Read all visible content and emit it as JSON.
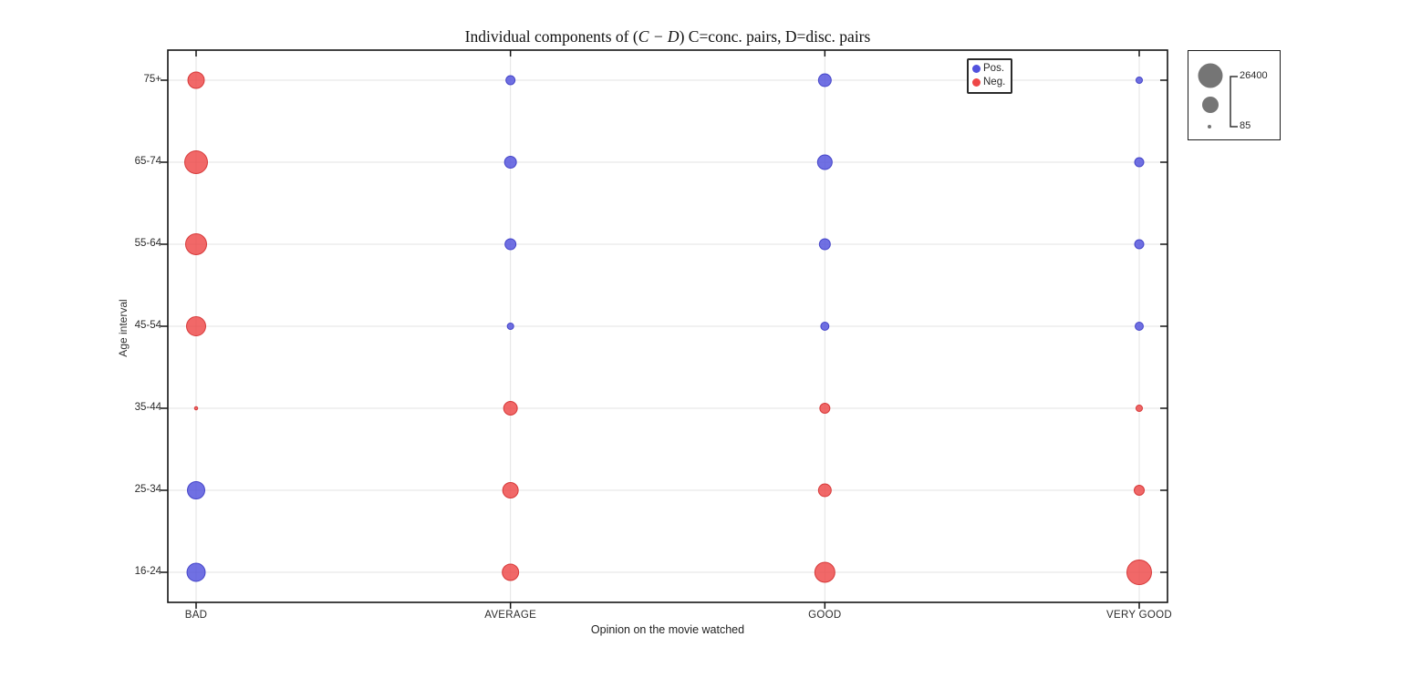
{
  "chart_data": {
    "type": "scatter",
    "title_prefix": "Individual components of (",
    "title_math": "C − D",
    "title_suffix": ") C=conc. pairs, D=disc. pairs",
    "xlabel": "Opinion on the movie watched",
    "ylabel": "Age interval",
    "x_categories": [
      "BAD",
      "AVERAGE",
      "GOOD",
      "VERY GOOD"
    ],
    "y_categories": [
      "16-24",
      "25-34",
      "35-44",
      "45-54",
      "55-64",
      "65-74",
      "75+"
    ],
    "legend_position": "top-right-inside",
    "grid": true,
    "series": [
      {
        "name": "Pos.",
        "fill": "#5151dd",
        "stroke": "#3b3bc4"
      },
      {
        "name": "Neg.",
        "fill": "#ee4747",
        "stroke": "#d32f2f"
      }
    ],
    "size_legend": {
      "max_label": "26400",
      "min_label": "85",
      "max_value": 26400,
      "min_value": 85,
      "circle_color": "#757575"
    },
    "points": [
      {
        "x": "BAD",
        "y": "75+",
        "series": "Neg.",
        "value": 11700
      },
      {
        "x": "BAD",
        "y": "65-74",
        "series": "Neg.",
        "value": 22600
      },
      {
        "x": "BAD",
        "y": "55-64",
        "series": "Neg.",
        "value": 19200
      },
      {
        "x": "BAD",
        "y": "45-54",
        "series": "Neg.",
        "value": 16000
      },
      {
        "x": "BAD",
        "y": "35-44",
        "series": "Neg.",
        "value": 200
      },
      {
        "x": "BAD",
        "y": "25-34",
        "series": "Pos.",
        "value": 13100
      },
      {
        "x": "BAD",
        "y": "16-24",
        "series": "Pos.",
        "value": 14500
      },
      {
        "x": "AVERAGE",
        "y": "75+",
        "series": "Pos.",
        "value": 3600
      },
      {
        "x": "AVERAGE",
        "y": "65-74",
        "series": "Pos.",
        "value": 6100
      },
      {
        "x": "AVERAGE",
        "y": "55-64",
        "series": "Pos.",
        "value": 5200
      },
      {
        "x": "AVERAGE",
        "y": "45-54",
        "series": "Pos.",
        "value": 1800
      },
      {
        "x": "AVERAGE",
        "y": "35-44",
        "series": "Neg.",
        "value": 8100
      },
      {
        "x": "AVERAGE",
        "y": "25-34",
        "series": "Neg.",
        "value": 10500
      },
      {
        "x": "AVERAGE",
        "y": "16-24",
        "series": "Neg.",
        "value": 11700
      },
      {
        "x": "GOOD",
        "y": "75+",
        "series": "Pos.",
        "value": 7100
      },
      {
        "x": "GOOD",
        "y": "65-74",
        "series": "Pos.",
        "value": 9300
      },
      {
        "x": "GOOD",
        "y": "55-64",
        "series": "Pos.",
        "value": 5200
      },
      {
        "x": "GOOD",
        "y": "45-54",
        "series": "Pos.",
        "value": 2900
      },
      {
        "x": "GOOD",
        "y": "35-44",
        "series": "Neg.",
        "value": 4400
      },
      {
        "x": "GOOD",
        "y": "25-34",
        "series": "Neg.",
        "value": 7100
      },
      {
        "x": "GOOD",
        "y": "16-24",
        "series": "Neg.",
        "value": 17500
      },
      {
        "x": "VERY GOOD",
        "y": "75+",
        "series": "Pos.",
        "value": 1800
      },
      {
        "x": "VERY GOOD",
        "y": "65-74",
        "series": "Pos.",
        "value": 3600
      },
      {
        "x": "VERY GOOD",
        "y": "55-64",
        "series": "Pos.",
        "value": 3600
      },
      {
        "x": "VERY GOOD",
        "y": "45-54",
        "series": "Pos.",
        "value": 2900
      },
      {
        "x": "VERY GOOD",
        "y": "35-44",
        "series": "Neg.",
        "value": 1800
      },
      {
        "x": "VERY GOOD",
        "y": "25-34",
        "series": "Neg.",
        "value": 4400
      },
      {
        "x": "VERY GOOD",
        "y": "16-24",
        "series": "Neg.",
        "value": 26400
      }
    ]
  }
}
